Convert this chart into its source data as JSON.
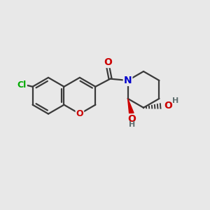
{
  "bg_color": "#e8e8e8",
  "bond_color": "#3a3a3a",
  "bond_width": 1.6,
  "atom_colors": {
    "O": "#cc0000",
    "N": "#0000cc",
    "Cl": "#00aa00",
    "C": "#3a3a3a",
    "H": "#607070"
  },
  "font_size": 10,
  "fig_size": [
    3.0,
    3.0
  ],
  "dpi": 100
}
